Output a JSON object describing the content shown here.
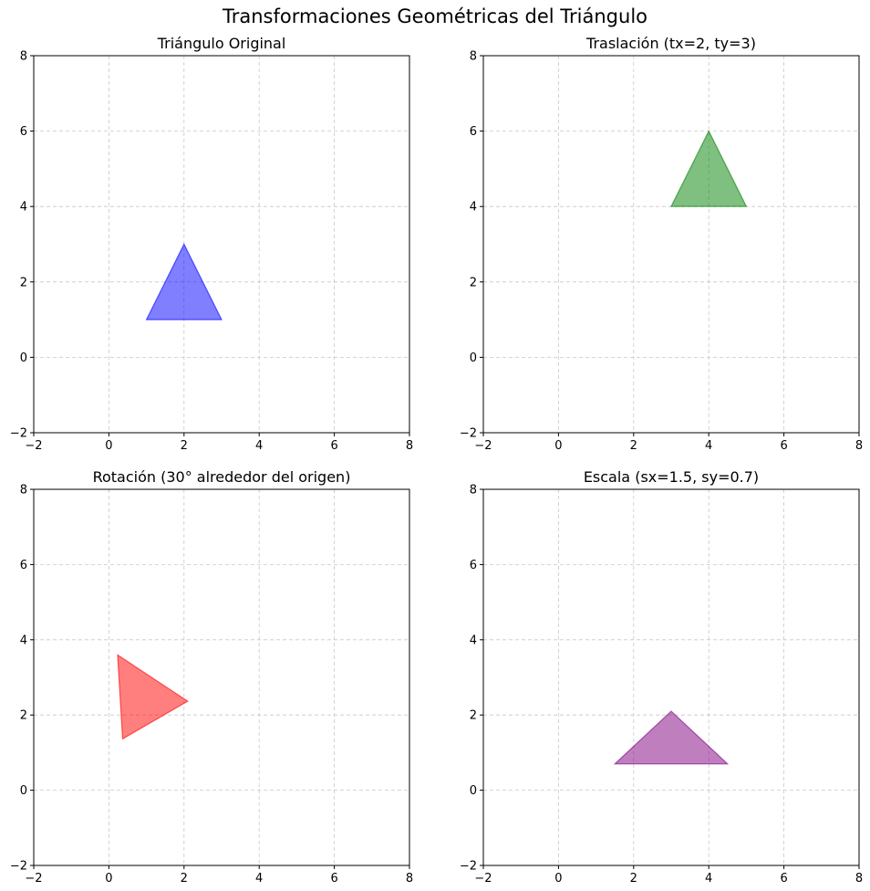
{
  "figure": {
    "suptitle": "Transformaciones Geométricas del Triángulo"
  },
  "chart_data": [
    {
      "type": "polygon",
      "title": "Triángulo Original",
      "xlim": [
        -2,
        8
      ],
      "ylim": [
        -2,
        8
      ],
      "xticks": [
        -2,
        0,
        2,
        4,
        6,
        8
      ],
      "yticks": [
        -2,
        0,
        2,
        4,
        6,
        8
      ],
      "grid": true,
      "fill": "#0000ff",
      "fill_opacity": 0.5,
      "points": [
        [
          1,
          1
        ],
        [
          3,
          1
        ],
        [
          2,
          3
        ]
      ]
    },
    {
      "type": "polygon",
      "title": "Traslación (tx=2, ty=3)",
      "xlim": [
        -2,
        8
      ],
      "ylim": [
        -2,
        8
      ],
      "xticks": [
        -2,
        0,
        2,
        4,
        6,
        8
      ],
      "yticks": [
        -2,
        0,
        2,
        4,
        6,
        8
      ],
      "grid": true,
      "fill": "#008000",
      "fill_opacity": 0.5,
      "points": [
        [
          3,
          4
        ],
        [
          5,
          4
        ],
        [
          4,
          6
        ]
      ]
    },
    {
      "type": "polygon",
      "title": "Rotación (30° alrededor del origen)",
      "xlim": [
        -2,
        8
      ],
      "ylim": [
        -2,
        8
      ],
      "xticks": [
        -2,
        0,
        2,
        4,
        6,
        8
      ],
      "yticks": [
        -2,
        0,
        2,
        4,
        6,
        8
      ],
      "grid": true,
      "fill": "#ff0000",
      "fill_opacity": 0.5,
      "points": [
        [
          0.366,
          1.366
        ],
        [
          2.098,
          2.366
        ],
        [
          0.232,
          3.598
        ]
      ]
    },
    {
      "type": "polygon",
      "title": "Escala (sx=1.5, sy=0.7)",
      "xlim": [
        -2,
        8
      ],
      "ylim": [
        -2,
        8
      ],
      "xticks": [
        -2,
        0,
        2,
        4,
        6,
        8
      ],
      "yticks": [
        -2,
        0,
        2,
        4,
        6,
        8
      ],
      "grid": true,
      "fill": "#800080",
      "fill_opacity": 0.5,
      "points": [
        [
          1.5,
          0.7
        ],
        [
          4.5,
          0.7
        ],
        [
          3.0,
          2.1
        ]
      ]
    }
  ]
}
